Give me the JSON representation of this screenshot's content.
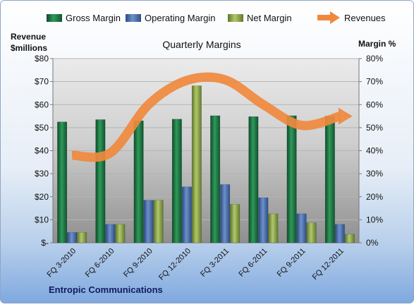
{
  "chart_data": {
    "type": "bar",
    "title": "Quarterly Margins",
    "footer": "Entropic Communications",
    "left_axis_label": [
      "Revenue",
      "$millions"
    ],
    "right_axis_label": "Margin %",
    "left_ticks": [
      "$-",
      "$10",
      "$20",
      "$30",
      "$40",
      "$50",
      "$60",
      "$70",
      "$80"
    ],
    "right_ticks": [
      "0%",
      "10%",
      "20%",
      "30%",
      "40%",
      "50%",
      "60%",
      "70%",
      "80%"
    ],
    "left_range": [
      0,
      80
    ],
    "right_range": [
      0,
      80
    ],
    "categories": [
      "FQ 3-2010",
      "FQ 6-2010",
      "FQ 9-2010",
      "FQ 12-2010",
      "FQ 3-2011",
      "FQ 6-2011",
      "FQ 9-2011",
      "FQ 12-2011"
    ],
    "series": [
      {
        "name": "Gross Margin",
        "kind": "bar",
        "axis": "right",
        "color": "#1E7A45",
        "values": [
          52.5,
          53.5,
          53,
          53.7,
          55.2,
          54.8,
          55.2,
          55
        ]
      },
      {
        "name": "Operating Margin",
        "kind": "bar",
        "axis": "right",
        "color": "#4A6FAE",
        "values": [
          4.5,
          8,
          18.5,
          24.3,
          25.3,
          19.6,
          12.6,
          8
        ]
      },
      {
        "name": "Net Margin",
        "kind": "bar",
        "axis": "right",
        "color": "#8BA34A",
        "values": [
          4.5,
          8,
          18.5,
          68.2,
          16.7,
          12.6,
          8.7,
          3.7
        ]
      },
      {
        "name": "Revenues",
        "kind": "line",
        "axis": "left",
        "color": "#F0893E",
        "values": [
          38,
          39,
          60,
          70.5,
          70.8,
          60,
          51,
          55
        ]
      }
    ],
    "legend": [
      "Gross Margin",
      "Operating Margin",
      "Net Margin",
      "Revenues"
    ],
    "legend_position": "top",
    "grid": true
  }
}
